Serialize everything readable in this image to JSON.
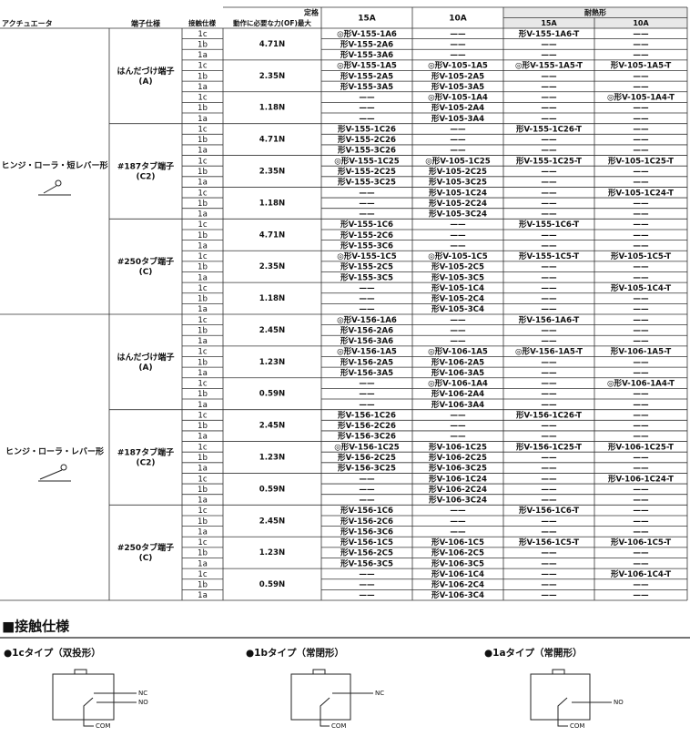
{
  "header": {
    "actuator": "アクチュエータ",
    "terminal": "端子仕様",
    "contact": "接触仕様",
    "force": "動作に必要な力(OF)最大",
    "rating": "定格",
    "a15": "15A",
    "a10": "10A",
    "heat": "耐熱形",
    "h15": "15A",
    "h10": "10A"
  },
  "table": {
    "blocks": [
      {
        "actuator": "ヒンジ・ローラ・短レバー形",
        "terminals": [
          {
            "label": "はんだづけ端子",
            "sub": "(A)",
            "forces": [
              {
                "force": "4.71N",
                "rows": [
                  [
                    "1c",
                    "◎形V-155-1A6",
                    "——",
                    "形V-155-1A6-T",
                    "——"
                  ],
                  [
                    "1b",
                    "形V-155-2A6",
                    "——",
                    "——",
                    "——"
                  ],
                  [
                    "1a",
                    "形V-155-3A6",
                    "——",
                    "——",
                    "——"
                  ]
                ]
              },
              {
                "force": "2.35N",
                "rows": [
                  [
                    "1c",
                    "◎形V-155-1A5",
                    "◎形V-105-1A5",
                    "◎形V-155-1A5-T",
                    "形V-105-1A5-T"
                  ],
                  [
                    "1b",
                    "形V-155-2A5",
                    "形V-105-2A5",
                    "——",
                    "——"
                  ],
                  [
                    "1a",
                    "形V-155-3A5",
                    "形V-105-3A5",
                    "——",
                    "——"
                  ]
                ]
              },
              {
                "force": "1.18N",
                "rows": [
                  [
                    "1c",
                    "——",
                    "◎形V-105-1A4",
                    "——",
                    "◎形V-105-1A4-T"
                  ],
                  [
                    "1b",
                    "——",
                    "形V-105-2A4",
                    "——",
                    "——"
                  ],
                  [
                    "1a",
                    "——",
                    "形V-105-3A4",
                    "——",
                    "——"
                  ]
                ]
              }
            ]
          },
          {
            "label": "#187タブ端子",
            "sub": "(C2)",
            "forces": [
              {
                "force": "4.71N",
                "rows": [
                  [
                    "1c",
                    "形V-155-1C26",
                    "——",
                    "形V-155-1C26-T",
                    "——"
                  ],
                  [
                    "1b",
                    "形V-155-2C26",
                    "——",
                    "——",
                    "——"
                  ],
                  [
                    "1a",
                    "形V-155-3C26",
                    "——",
                    "——",
                    "——"
                  ]
                ]
              },
              {
                "force": "2.35N",
                "rows": [
                  [
                    "1c",
                    "◎形V-155-1C25",
                    "◎形V-105-1C25",
                    "形V-155-1C25-T",
                    "形V-105-1C25-T"
                  ],
                  [
                    "1b",
                    "形V-155-2C25",
                    "形V-105-2C25",
                    "——",
                    "——"
                  ],
                  [
                    "1a",
                    "形V-155-3C25",
                    "形V-105-3C25",
                    "——",
                    "——"
                  ]
                ]
              },
              {
                "force": "1.18N",
                "rows": [
                  [
                    "1c",
                    "——",
                    "形V-105-1C24",
                    "——",
                    "形V-105-1C24-T"
                  ],
                  [
                    "1b",
                    "——",
                    "形V-105-2C24",
                    "——",
                    "——"
                  ],
                  [
                    "1a",
                    "——",
                    "形V-105-3C24",
                    "——",
                    "——"
                  ]
                ]
              }
            ]
          },
          {
            "label": "#250タブ端子",
            "sub": "(C)",
            "forces": [
              {
                "force": "4.71N",
                "rows": [
                  [
                    "1c",
                    "形V-155-1C6",
                    "——",
                    "形V-155-1C6-T",
                    "——"
                  ],
                  [
                    "1b",
                    "形V-155-2C6",
                    "——",
                    "——",
                    "——"
                  ],
                  [
                    "1a",
                    "形V-155-3C6",
                    "——",
                    "——",
                    "——"
                  ]
                ]
              },
              {
                "force": "2.35N",
                "rows": [
                  [
                    "1c",
                    "◎形V-155-1C5",
                    "◎形V-105-1C5",
                    "形V-155-1C5-T",
                    "形V-105-1C5-T"
                  ],
                  [
                    "1b",
                    "形V-155-2C5",
                    "形V-105-2C5",
                    "——",
                    "——"
                  ],
                  [
                    "1a",
                    "形V-155-3C5",
                    "形V-105-3C5",
                    "——",
                    "——"
                  ]
                ]
              },
              {
                "force": "1.18N",
                "rows": [
                  [
                    "1c",
                    "——",
                    "形V-105-1C4",
                    "——",
                    "形V-105-1C4-T"
                  ],
                  [
                    "1b",
                    "——",
                    "形V-105-2C4",
                    "——",
                    "——"
                  ],
                  [
                    "1a",
                    "——",
                    "形V-105-3C4",
                    "——",
                    "——"
                  ]
                ]
              }
            ]
          }
        ]
      },
      {
        "actuator": "ヒンジ・ローラ・レバー形",
        "terminals": [
          {
            "label": "はんだづけ端子",
            "sub": "(A)",
            "forces": [
              {
                "force": "2.45N",
                "rows": [
                  [
                    "1c",
                    "◎形V-156-1A6",
                    "——",
                    "形V-156-1A6-T",
                    "——"
                  ],
                  [
                    "1b",
                    "形V-156-2A6",
                    "——",
                    "——",
                    "——"
                  ],
                  [
                    "1a",
                    "形V-156-3A6",
                    "——",
                    "——",
                    "——"
                  ]
                ]
              },
              {
                "force": "1.23N",
                "rows": [
                  [
                    "1c",
                    "◎形V-156-1A5",
                    "◎形V-106-1A5",
                    "◎形V-156-1A5-T",
                    "形V-106-1A5-T"
                  ],
                  [
                    "1b",
                    "形V-156-2A5",
                    "形V-106-2A5",
                    "——",
                    "——"
                  ],
                  [
                    "1a",
                    "形V-156-3A5",
                    "形V-106-3A5",
                    "——",
                    "——"
                  ]
                ]
              },
              {
                "force": "0.59N",
                "rows": [
                  [
                    "1c",
                    "——",
                    "◎形V-106-1A4",
                    "——",
                    "◎形V-106-1A4-T"
                  ],
                  [
                    "1b",
                    "——",
                    "形V-106-2A4",
                    "——",
                    "——"
                  ],
                  [
                    "1a",
                    "——",
                    "形V-106-3A4",
                    "——",
                    "——"
                  ]
                ]
              }
            ]
          },
          {
            "label": "#187タブ端子",
            "sub": "(C2)",
            "forces": [
              {
                "force": "2.45N",
                "rows": [
                  [
                    "1c",
                    "形V-156-1C26",
                    "——",
                    "形V-156-1C26-T",
                    "——"
                  ],
                  [
                    "1b",
                    "形V-156-2C26",
                    "——",
                    "——",
                    "——"
                  ],
                  [
                    "1a",
                    "形V-156-3C26",
                    "——",
                    "——",
                    "——"
                  ]
                ]
              },
              {
                "force": "1.23N",
                "rows": [
                  [
                    "1c",
                    "◎形V-156-1C25",
                    "形V-106-1C25",
                    "形V-156-1C25-T",
                    "形V-106-1C25-T"
                  ],
                  [
                    "1b",
                    "形V-156-2C25",
                    "形V-106-2C25",
                    "——",
                    "——"
                  ],
                  [
                    "1a",
                    "形V-156-3C25",
                    "形V-106-3C25",
                    "——",
                    "——"
                  ]
                ]
              },
              {
                "force": "0.59N",
                "rows": [
                  [
                    "1c",
                    "——",
                    "形V-106-1C24",
                    "——",
                    "形V-106-1C24-T"
                  ],
                  [
                    "1b",
                    "——",
                    "形V-106-2C24",
                    "——",
                    "——"
                  ],
                  [
                    "1a",
                    "——",
                    "形V-106-3C24",
                    "——",
                    "——"
                  ]
                ]
              }
            ]
          },
          {
            "label": "#250タブ端子",
            "sub": "(C)",
            "forces": [
              {
                "force": "2.45N",
                "rows": [
                  [
                    "1c",
                    "形V-156-1C6",
                    "——",
                    "形V-156-1C6-T",
                    "——"
                  ],
                  [
                    "1b",
                    "形V-156-2C6",
                    "——",
                    "——",
                    "——"
                  ],
                  [
                    "1a",
                    "形V-156-3C6",
                    "——",
                    "——",
                    "——"
                  ]
                ]
              },
              {
                "force": "1.23N",
                "rows": [
                  [
                    "1c",
                    "形V-156-1C5",
                    "形V-106-1C5",
                    "形V-156-1C5-T",
                    "形V-106-1C5-T"
                  ],
                  [
                    "1b",
                    "形V-156-2C5",
                    "形V-106-2C5",
                    "——",
                    "——"
                  ],
                  [
                    "1a",
                    "形V-156-3C5",
                    "形V-106-3C5",
                    "——",
                    "——"
                  ]
                ]
              },
              {
                "force": "0.59N",
                "rows": [
                  [
                    "1c",
                    "——",
                    "形V-106-1C4",
                    "——",
                    "形V-106-1C4-T"
                  ],
                  [
                    "1b",
                    "——",
                    "形V-106-2C4",
                    "——",
                    "——"
                  ],
                  [
                    "1a",
                    "——",
                    "形V-106-3C4",
                    "——",
                    "——"
                  ]
                ]
              }
            ]
          }
        ]
      }
    ]
  },
  "contact_spec": {
    "title": "■接触仕様",
    "types": [
      {
        "label": "●1cタイプ（双投形）",
        "nc": "NC",
        "no": "NO",
        "com": "COM"
      },
      {
        "label": "●1bタイプ（常閉形）",
        "nc": "NC",
        "com": "COM"
      },
      {
        "label": "●1aタイプ（常開形）",
        "no": "NO",
        "com": "COM"
      }
    ]
  }
}
